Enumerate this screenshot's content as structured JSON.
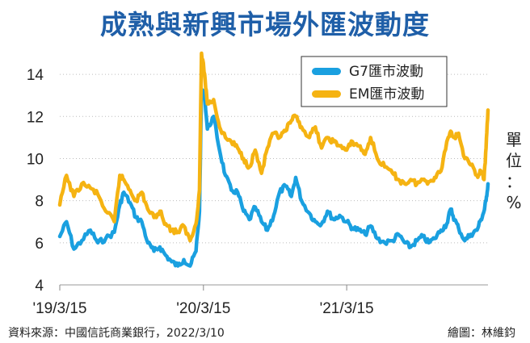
{
  "chart_data": {
    "type": "line",
    "title": "成熟與新興市場外匯波動度",
    "unit_label": [
      "單",
      "位",
      "：",
      "%"
    ],
    "ylim": [
      4,
      15
    ],
    "y_ticks": [
      4,
      6,
      8,
      10,
      12,
      14
    ],
    "x_range": [
      "2019-03-15",
      "2022-03-10"
    ],
    "x_ticks": [
      {
        "date": "2019-03-15",
        "label": "'19/3/15"
      },
      {
        "date": "2020-03-15",
        "label": "'20/3/15"
      },
      {
        "date": "2021-03-15",
        "label": "'21/3/15"
      }
    ],
    "legend_position": "top-right",
    "series": [
      {
        "name": "G7匯市波動",
        "color": "#1aa0e0",
        "points": [
          [
            "2019-03-15",
            6.3
          ],
          [
            "2019-04-01",
            7.0
          ],
          [
            "2019-04-20",
            5.7
          ],
          [
            "2019-05-10",
            6.1
          ],
          [
            "2019-06-01",
            6.6
          ],
          [
            "2019-06-20",
            6.0
          ],
          [
            "2019-07-10",
            6.2
          ],
          [
            "2019-08-01",
            6.5
          ],
          [
            "2019-08-15",
            7.8
          ],
          [
            "2019-08-25",
            8.4
          ],
          [
            "2019-09-10",
            7.9
          ],
          [
            "2019-09-25",
            7.2
          ],
          [
            "2019-10-10",
            7.0
          ],
          [
            "2019-10-25",
            6.0
          ],
          [
            "2019-11-10",
            5.6
          ],
          [
            "2019-11-25",
            5.8
          ],
          [
            "2019-12-10",
            5.4
          ],
          [
            "2019-12-25",
            5.1
          ],
          [
            "2020-01-10",
            4.9
          ],
          [
            "2020-01-25",
            5.2
          ],
          [
            "2020-02-10",
            4.9
          ],
          [
            "2020-02-25",
            5.6
          ],
          [
            "2020-03-05",
            7.5
          ],
          [
            "2020-03-10",
            13.3
          ],
          [
            "2020-03-18",
            13.0
          ],
          [
            "2020-03-25",
            11.4
          ],
          [
            "2020-04-10",
            12.0
          ],
          [
            "2020-04-25",
            10.4
          ],
          [
            "2020-05-10",
            9.2
          ],
          [
            "2020-05-25",
            8.5
          ],
          [
            "2020-06-10",
            8.4
          ],
          [
            "2020-06-25",
            7.5
          ],
          [
            "2020-07-10",
            7.1
          ],
          [
            "2020-07-25",
            7.7
          ],
          [
            "2020-08-10",
            7.0
          ],
          [
            "2020-08-25",
            6.6
          ],
          [
            "2020-09-10",
            7.3
          ],
          [
            "2020-09-25",
            8.4
          ],
          [
            "2020-10-10",
            8.7
          ],
          [
            "2020-10-25",
            8.2
          ],
          [
            "2020-11-05",
            9.1
          ],
          [
            "2020-11-20",
            8.0
          ],
          [
            "2020-12-10",
            7.4
          ],
          [
            "2020-12-25",
            7.0
          ],
          [
            "2021-01-10",
            6.9
          ],
          [
            "2021-01-25",
            7.5
          ],
          [
            "2021-02-10",
            7.1
          ],
          [
            "2021-02-25",
            7.3
          ],
          [
            "2021-03-15",
            7.0
          ],
          [
            "2021-03-30",
            6.7
          ],
          [
            "2021-04-15",
            6.6
          ],
          [
            "2021-05-01",
            6.4
          ],
          [
            "2021-05-15",
            6.8
          ],
          [
            "2021-06-01",
            6.2
          ],
          [
            "2021-06-20",
            6.0
          ],
          [
            "2021-07-10",
            6.1
          ],
          [
            "2021-07-25",
            6.4
          ],
          [
            "2021-08-10",
            6.0
          ],
          [
            "2021-08-25",
            5.8
          ],
          [
            "2021-09-10",
            6.1
          ],
          [
            "2021-09-25",
            6.3
          ],
          [
            "2021-10-10",
            6.0
          ],
          [
            "2021-10-25",
            6.2
          ],
          [
            "2021-11-10",
            6.6
          ],
          [
            "2021-11-25",
            6.9
          ],
          [
            "2021-12-05",
            7.6
          ],
          [
            "2021-12-15",
            7.1
          ],
          [
            "2021-12-25",
            6.7
          ],
          [
            "2022-01-10",
            6.1
          ],
          [
            "2022-01-25",
            6.4
          ],
          [
            "2022-02-10",
            6.6
          ],
          [
            "2022-02-20",
            7.1
          ],
          [
            "2022-02-28",
            7.5
          ],
          [
            "2022-03-05",
            8.0
          ],
          [
            "2022-03-10",
            8.8
          ]
        ]
      },
      {
        "name": "EM匯市波動",
        "color": "#f5b312",
        "points": [
          [
            "2019-03-15",
            7.8
          ],
          [
            "2019-04-01",
            9.2
          ],
          [
            "2019-04-20",
            8.2
          ],
          [
            "2019-05-10",
            8.8
          ],
          [
            "2019-06-01",
            8.6
          ],
          [
            "2019-06-20",
            8.3
          ],
          [
            "2019-07-10",
            7.5
          ],
          [
            "2019-08-01",
            7.0
          ],
          [
            "2019-08-15",
            9.2
          ],
          [
            "2019-08-25",
            9.0
          ],
          [
            "2019-09-10",
            8.5
          ],
          [
            "2019-09-25",
            8.0
          ],
          [
            "2019-10-10",
            8.4
          ],
          [
            "2019-10-25",
            7.6
          ],
          [
            "2019-11-10",
            7.2
          ],
          [
            "2019-11-25",
            7.5
          ],
          [
            "2019-12-10",
            6.9
          ],
          [
            "2019-12-25",
            6.6
          ],
          [
            "2020-01-10",
            6.5
          ],
          [
            "2020-01-25",
            6.8
          ],
          [
            "2020-02-10",
            6.1
          ],
          [
            "2020-02-25",
            6.9
          ],
          [
            "2020-03-05",
            8.5
          ],
          [
            "2020-03-10",
            15.0
          ],
          [
            "2020-03-18",
            14.0
          ],
          [
            "2020-03-25",
            12.6
          ],
          [
            "2020-04-10",
            12.8
          ],
          [
            "2020-04-25",
            11.5
          ],
          [
            "2020-05-10",
            11.0
          ],
          [
            "2020-05-25",
            10.8
          ],
          [
            "2020-06-10",
            10.5
          ],
          [
            "2020-06-25",
            10.0
          ],
          [
            "2020-07-10",
            9.6
          ],
          [
            "2020-07-25",
            10.4
          ],
          [
            "2020-08-10",
            9.3
          ],
          [
            "2020-08-25",
            10.5
          ],
          [
            "2020-09-10",
            11.2
          ],
          [
            "2020-09-25",
            11.0
          ],
          [
            "2020-10-10",
            11.3
          ],
          [
            "2020-10-25",
            11.8
          ],
          [
            "2020-11-05",
            12.0
          ],
          [
            "2020-11-20",
            11.5
          ],
          [
            "2020-12-10",
            11.0
          ],
          [
            "2020-12-25",
            11.5
          ],
          [
            "2021-01-10",
            10.5
          ],
          [
            "2021-01-25",
            11.0
          ],
          [
            "2021-02-10",
            10.8
          ],
          [
            "2021-02-25",
            10.6
          ],
          [
            "2021-03-15",
            10.4
          ],
          [
            "2021-03-30",
            10.8
          ],
          [
            "2021-04-15",
            10.6
          ],
          [
            "2021-05-01",
            10.2
          ],
          [
            "2021-05-15",
            11.0
          ],
          [
            "2021-06-01",
            10.0
          ],
          [
            "2021-06-20",
            9.6
          ],
          [
            "2021-07-10",
            9.3
          ],
          [
            "2021-07-25",
            9.0
          ],
          [
            "2021-08-10",
            8.8
          ],
          [
            "2021-08-25",
            9.0
          ],
          [
            "2021-09-10",
            8.8
          ],
          [
            "2021-09-25",
            9.0
          ],
          [
            "2021-10-10",
            8.9
          ],
          [
            "2021-10-25",
            9.1
          ],
          [
            "2021-11-10",
            9.4
          ],
          [
            "2021-11-25",
            10.8
          ],
          [
            "2021-12-05",
            11.3
          ],
          [
            "2021-12-15",
            11.0
          ],
          [
            "2021-12-25",
            11.2
          ],
          [
            "2022-01-10",
            10.0
          ],
          [
            "2022-01-25",
            9.7
          ],
          [
            "2022-02-10",
            9.2
          ],
          [
            "2022-02-20",
            9.4
          ],
          [
            "2022-02-28",
            9.0
          ],
          [
            "2022-03-05",
            10.5
          ],
          [
            "2022-03-10",
            12.3
          ]
        ]
      }
    ]
  },
  "footer": {
    "source": "資料來源：中國信託商業銀行，2022/3/10",
    "credit": "繪圖：林維鈞"
  }
}
